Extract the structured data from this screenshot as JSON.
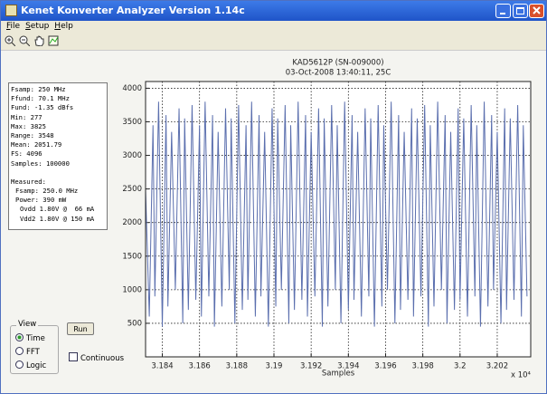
{
  "window": {
    "title": "Kenet Konverter Analyzer Version 1.14c"
  },
  "menu": [
    "File",
    "Setup",
    "Help"
  ],
  "info": {
    "summary": [
      "Fsamp: 250 MHz",
      "Ffund: 70.1 MHz",
      "Fund: -1.35 dBfs",
      "Min: 277",
      "Max: 3825",
      "Range: 3548",
      "Mean: 2051.79",
      "FS: 4096",
      "Samples: 100000"
    ],
    "measured_title": "Measured:",
    "measured": [
      "Fsamp: 250.0 MHz",
      "Power: 390 mW"
    ],
    "supplies": [
      "Ovdd 1.80V @  66 mA",
      "Vdd2 1.80V @ 150 mA"
    ]
  },
  "view": {
    "title": "View",
    "options": [
      "Time",
      "FFT",
      "Logic"
    ],
    "selected": 0
  },
  "run_button": "Run",
  "continuous": "Continuous",
  "chart_data": {
    "type": "line",
    "title": "KAD5612P (SN-009000)",
    "subtitle": "03-Oct-2008 13:40:11, 25C",
    "x_label": "Samples",
    "x_multiplier": "x 10⁴",
    "color": "#5b6fae",
    "grid": true,
    "xlim": [
      31831,
      32038
    ],
    "ylim": [
      0,
      4100
    ],
    "xticks": [
      {
        "value": 31840,
        "label": "3.184"
      },
      {
        "value": 31860,
        "label": "3.186"
      },
      {
        "value": 31880,
        "label": "3.188"
      },
      {
        "value": 31900,
        "label": "3.19"
      },
      {
        "value": 31920,
        "label": "3.192"
      },
      {
        "value": 31940,
        "label": "3.194"
      },
      {
        "value": 31960,
        "label": "3.196"
      },
      {
        "value": 31980,
        "label": "3.198"
      },
      {
        "value": 32000,
        "label": "3.2"
      },
      {
        "value": 32020,
        "label": "3.202"
      }
    ],
    "yticks": [
      500,
      1000,
      1500,
      2000,
      2500,
      3000,
      3500,
      4000
    ],
    "x": [
      31831,
      31833,
      31835,
      31836,
      31838,
      31840,
      31842,
      31843,
      31845,
      31847,
      31849,
      31851,
      31852,
      31854,
      31856,
      31858,
      31860,
      31861,
      31863,
      31865,
      31867,
      31868,
      31870,
      31872,
      31874,
      31876,
      31877,
      31879,
      31881,
      31883,
      31885,
      31886,
      31888,
      31890,
      31892,
      31893,
      31895,
      31897,
      31899,
      31901,
      31902,
      31904,
      31906,
      31908,
      31909,
      31911,
      31913,
      31915,
      31917,
      31918,
      31920,
      31922,
      31924,
      31926,
      31927,
      31929,
      31931,
      31933,
      31934,
      31936,
      31938,
      31940,
      31942,
      31943,
      31945,
      31947,
      31949,
      31951,
      31952,
      31954,
      31956,
      31958,
      31959,
      31961,
      31963,
      31965,
      31967,
      31968,
      31970,
      31972,
      31974,
      31975,
      31977,
      31979,
      31981,
      31983,
      31984,
      31986,
      31988,
      31990,
      31992,
      31993,
      31995,
      31997,
      31999,
      32000,
      32002,
      32004,
      32006,
      32008,
      32009,
      32011,
      32013,
      32015,
      32017,
      32018,
      32020,
      32022,
      32024,
      32025,
      32027,
      32029,
      32031,
      32033,
      32034,
      32036
    ],
    "values": [
      2500,
      600,
      3450,
      900,
      3800,
      450,
      3600,
      750,
      3350,
      1000,
      3700,
      500,
      3550,
      700,
      3750,
      850,
      3450,
      600,
      3800,
      900,
      3600,
      450,
      3350,
      750,
      3700,
      1000,
      3550,
      500,
      3750,
      700,
      3450,
      850,
      3800,
      600,
      3600,
      900,
      3350,
      450,
      3700,
      750,
      3550,
      1000,
      3750,
      500,
      3450,
      700,
      3800,
      850,
      3600,
      600,
      3350,
      900,
      3700,
      450,
      3550,
      750,
      3750,
      1000,
      3450,
      500,
      3800,
      700,
      3600,
      850,
      3350,
      600,
      3700,
      900,
      3550,
      450,
      3750,
      750,
      3450,
      1000,
      3800,
      500,
      3600,
      700,
      3350,
      850,
      3700,
      600,
      3550,
      900,
      3750,
      450,
      3450,
      750,
      3800,
      1000,
      3600,
      500,
      3350,
      700,
      3700,
      850,
      3550,
      600,
      3750,
      900,
      3450,
      450,
      3800,
      750,
      3600,
      1000,
      3350,
      500,
      3700,
      700,
      3550,
      850,
      3750,
      600,
      3450,
      900
    ]
  }
}
